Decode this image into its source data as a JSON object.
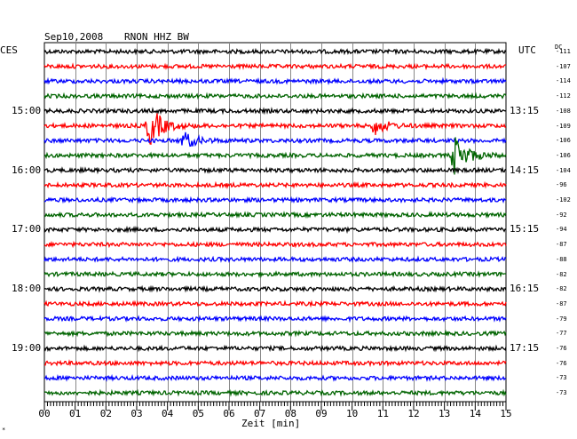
{
  "header": {
    "date": "Sep10,2008",
    "station": "RNON HHZ BW",
    "left_tz": "CES",
    "right_tz": "UTC",
    "dc_label": "DC"
  },
  "chart_data": {
    "type": "line",
    "title": "Sep10,2008   RNON HHZ BW",
    "xlabel": "Zeit [min]",
    "xlim": [
      0,
      15
    ],
    "x_ticks": [
      "00",
      "01",
      "02",
      "03",
      "04",
      "05",
      "06",
      "07",
      "08",
      "09",
      "10",
      "11",
      "12",
      "13",
      "14",
      "15"
    ],
    "left_hour_labels": [
      "15:00",
      "16:00",
      "17:00",
      "18:00",
      "19:00"
    ],
    "right_hour_labels": [
      "13:15",
      "14:15",
      "15:15",
      "16:15",
      "17:15"
    ],
    "trace_colors": [
      "#000000",
      "#ff0000",
      "#0000ff",
      "#006400"
    ],
    "dc_offsets": [
      -111,
      -107,
      -114,
      -112,
      -108,
      -109,
      -106,
      -106,
      -104,
      -96,
      -102,
      -92,
      -94,
      -87,
      -88,
      -82,
      -82,
      -87,
      -79,
      -77,
      -76,
      -76,
      -73,
      -73
    ],
    "events": [
      {
        "trace": 5,
        "minute": 3.3,
        "amplitude": "large"
      },
      {
        "trace": 5,
        "minute": 10.6,
        "amplitude": "medium"
      },
      {
        "trace": 6,
        "minute": 4.4,
        "amplitude": "medium"
      },
      {
        "trace": 7,
        "minute": 13.2,
        "amplitude": "large"
      }
    ],
    "grid": true
  },
  "footer": {
    "mark": "*"
  }
}
